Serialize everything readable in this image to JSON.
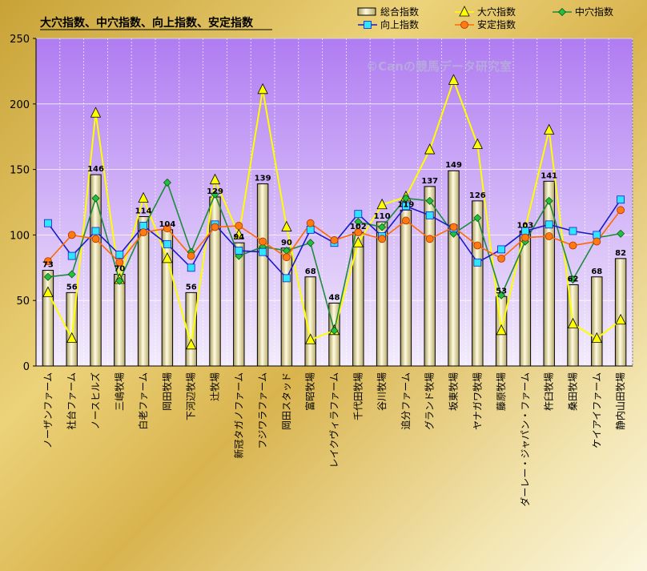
{
  "chart_data": {
    "type": "bar",
    "title": "大穴指数、中穴指数、向上指数、安定指数",
    "watermark": "©Canの競馬データ研究室",
    "ylim": [
      0,
      250
    ],
    "yticks": [
      0,
      50,
      100,
      150,
      200,
      250
    ],
    "grid": true,
    "legend_position": "top-right",
    "categories": [
      "ノーザンファーム",
      "社台ファーム",
      "ノースヒルズ",
      "三嶋牧場",
      "白老ファーム",
      "岡田牧場",
      "下河辺牧場",
      "辻牧場",
      "新冠タガノファーム",
      "フジワラファーム",
      "岡田スタッド",
      "富昭牧場",
      "レイクヴィラファーム",
      "千代田牧場",
      "谷川牧場",
      "追分ファーム",
      "グランド牧場",
      "坂東牧場",
      "ヤナガワ牧場",
      "藤原牧場",
      "ダーレー・ジャパン・ファーム",
      "杵臼牧場",
      "桑田牧場",
      "ケイアイファーム",
      "静内山田牧場"
    ],
    "series": [
      {
        "name": "総合指数",
        "type": "bar",
        "color": "#f5f0c8",
        "values": [
          73,
          56,
          146,
          70,
          114,
          104,
          56,
          129,
          94,
          139,
          90,
          68,
          48,
          102,
          110,
          119,
          137,
          149,
          126,
          53,
          103,
          141,
          62,
          68,
          82
        ]
      },
      {
        "name": "大穴指数",
        "type": "line",
        "marker": "triangle",
        "color": "#ffff00",
        "values": [
          56,
          21,
          193,
          66,
          128,
          82,
          16,
          142,
          100,
          211,
          106,
          20,
          27,
          94,
          123,
          129,
          165,
          218,
          169,
          27,
          105,
          180,
          32,
          21,
          35
        ]
      },
      {
        "name": "中穴指数",
        "type": "line",
        "marker": "diamond",
        "color": "#1e8a3c",
        "values": [
          68,
          70,
          128,
          65,
          105,
          140,
          87,
          131,
          84,
          91,
          88,
          94,
          27,
          110,
          106,
          128,
          126,
          101,
          113,
          54,
          95,
          126,
          66,
          98,
          101
        ]
      },
      {
        "name": "向上指数",
        "type": "line",
        "marker": "square",
        "color": "#1a1ac8",
        "values": [
          109,
          84,
          103,
          85,
          107,
          93,
          75,
          108,
          88,
          87,
          67,
          104,
          94,
          116,
          99,
          122,
          115,
          105,
          79,
          89,
          103,
          108,
          103,
          100,
          127
        ]
      },
      {
        "name": "安定指数",
        "type": "line",
        "marker": "circle",
        "color": "#ff6a00",
        "values": [
          80,
          100,
          97,
          79,
          102,
          105,
          84,
          106,
          107,
          95,
          83,
          109,
          96,
          102,
          97,
          111,
          97,
          106,
          92,
          82,
          98,
          99,
          92,
          95,
          119
        ]
      }
    ]
  }
}
